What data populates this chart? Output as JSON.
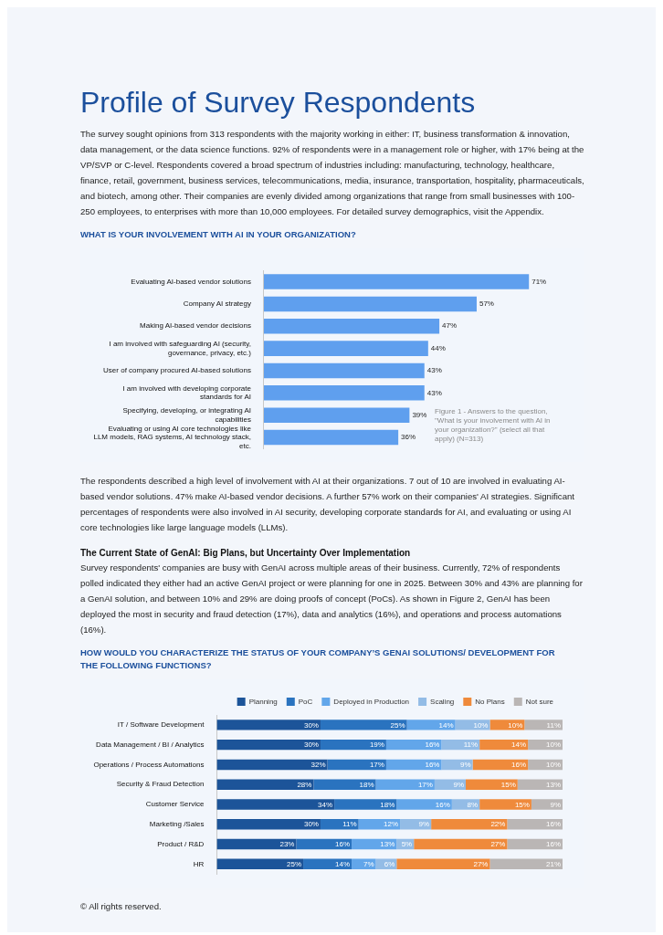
{
  "chart_data": [
    {
      "type": "other",
      "title": "Profile of Survey Respondents",
      "annotations": [
        "The survey sought opinions from 313 respondents with the majority working in either: IT, business transformation & innovation, data management, or the data science functions. 92% of respondents were in a management role or higher, with 17% being at the VP/SVP or C-level. Respondents covered a broad spectrum of industries including: manufacturing, technology, healthcare, finance, retail, government, business services, telecommunications, media, insurance, transportation, hospitality, pharmaceuticals, and biotech, among other. Their companies are evenly divided among organizations that range from small businesses with 100-250 employees, to enterprises with more than 10,000 employees. For detailed survey demographics, visit the Appendix."
      ]
    },
    {
      "type": "bar",
      "orientation": "horizontal",
      "title": "WHAT IS YOUR INVOLVEMENT WITH AI IN YOUR ORGANIZATION?",
      "categories": [
        "Evaluating AI-based vendor solutions",
        "Company AI strategy",
        "Making AI-based vendor decisions",
        "I am involved with safeguarding AI (security, governance, privacy, etc.)",
        "User of company procured AI-based solutions",
        "I am involved with developing corporate standards for AI",
        "Specifying, developing, or integrating AI capabilities",
        "Evaluating or using AI core technologies like LLM models, RAG systems, AI technology stack, etc."
      ],
      "values": [
        71,
        57,
        47,
        44,
        43,
        43,
        39,
        36
      ],
      "value_labels": [
        "71%",
        "57%",
        "47%",
        "44%",
        "43%",
        "43%",
        "39%",
        "36%"
      ],
      "color": "#5f9fee",
      "tick_labels": "y",
      "annotations": [
        "Figure 1 - Answers to the question, \"What is your involvement with AI in your organization?\" (select all that apply) (N=313)"
      ]
    },
    {
      "type": "other",
      "annotations": [
        "The respondents described a high level of involvement with AI at their organizations. 7 out of 10 are involved in evaluating AI-based vendor solutions. 47% make AI-based vendor decisions. A further 57% work on their companies' AI strategies. Significant percentages of respondents were also involved in AI security, developing corporate standards for AI, and evaluating or using AI core technologies like large language models (LLMs)."
      ]
    },
    {
      "type": "other",
      "title": "The Current State of GenAI: Big Plans, but Uncertainty Over Implementation",
      "annotations": [
        "Survey respondents' companies are busy with GenAI across multiple areas of their business. Currently, 72% of respondents polled indicated they either had an active GenAI project or were planning for one in 2025. Between 30% and 43% are planning for a GenAI solution, and between 10% and 29% are doing proofs of concept (PoCs). As shown in Figure 2, GenAI has been deployed the most in security and fraud detection (17%), data and analytics (16%), and operations and process automations (16%)."
      ]
    },
    {
      "type": "bar",
      "orientation": "horizontal",
      "stacked": true,
      "title": "HOW WOULD YOU CHARACTERIZE THE STATUS OF YOUR COMPANY’S GENAI SOLUTIONS/ DEVELOPMENT FOR THE FOLLOWING FUNCTIONS?",
      "categories": [
        "IT / Software Development",
        "Data Management / BI / Analytics",
        "Operations / Process Automations",
        "Security & Fraud Detection",
        "Customer Service",
        "Marketing /Sales",
        "Product / R&D",
        "HR"
      ],
      "series": [
        {
          "name": "Planning",
          "color": "#1c5499",
          "values": [
            30,
            30,
            32,
            28,
            34,
            30,
            23,
            25
          ],
          "value_labels": [
            "30%",
            "30%",
            "32%",
            "28%",
            "34%",
            "30%",
            "23%",
            "25%"
          ]
        },
        {
          "name": "PoC",
          "color": "#2a73bf",
          "values": [
            25,
            19,
            17,
            18,
            18,
            11,
            16,
            14
          ],
          "value_labels": [
            "25%",
            "19%",
            "17%",
            "18%",
            "18%",
            "11%",
            "16%",
            "14%"
          ]
        },
        {
          "name": "Deployed in Production",
          "color": "#62a6ea",
          "values": [
            14,
            16,
            16,
            17,
            16,
            12,
            13,
            7
          ],
          "value_labels": [
            "14%",
            "16%",
            "16%",
            "17%",
            "16%",
            "12%",
            "13%",
            "7%"
          ]
        },
        {
          "name": "Scaling",
          "color": "#93bce6",
          "values": [
            10,
            11,
            9,
            9,
            8,
            9,
            5,
            6
          ],
          "value_labels": [
            "10%",
            "11%",
            "9%",
            "9%",
            "8%",
            "9%",
            "5%",
            "6%"
          ]
        },
        {
          "name": "No Plans",
          "color": "#ef8a3b",
          "values": [
            10,
            14,
            16,
            15,
            15,
            22,
            27,
            27
          ],
          "value_labels": [
            "10%",
            "14%",
            "16%",
            "15%",
            "15%",
            "22%",
            "27%",
            "27%"
          ]
        },
        {
          "name": "Not sure",
          "color": "#bab6b5",
          "values": [
            11,
            10,
            10,
            13,
            9,
            16,
            16,
            21
          ],
          "value_labels": [
            "11%",
            "10%",
            "10%",
            "13%",
            "9%",
            "16%",
            "16%",
            "21%"
          ]
        }
      ],
      "legend": "top",
      "tick_labels": "y"
    },
    {
      "type": "other",
      "annotations": [
        "© All rights reserved."
      ]
    }
  ]
}
